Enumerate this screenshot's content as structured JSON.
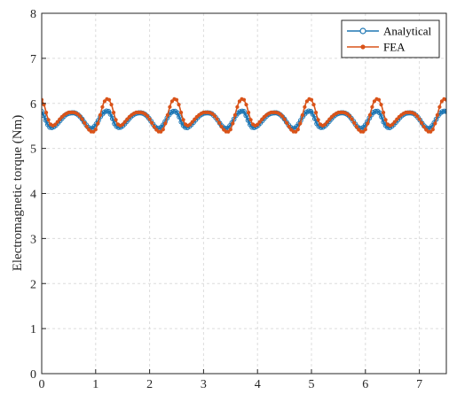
{
  "chart_data": {
    "type": "line",
    "title": "",
    "xlabel": "",
    "ylabel": "Electromagnetic torque (Nm)",
    "xlim": [
      0,
      7.5
    ],
    "ylim": [
      0,
      8
    ],
    "xticks": [
      "0",
      "1",
      "2",
      "3",
      "4",
      "5",
      "6",
      "7"
    ],
    "yticks": [
      "0",
      "1",
      "2",
      "3",
      "4",
      "5",
      "6",
      "7",
      "8"
    ],
    "grid": true,
    "legend_position": "top-right",
    "period": 1.25,
    "series": [
      {
        "name": "Analytical",
        "color": "#1f77b4",
        "marker": "open-circle",
        "period_profile": {
          "x": [
            0,
            0.05,
            0.1,
            0.15,
            0.2,
            0.25,
            0.3,
            0.35,
            0.4,
            0.45,
            0.5,
            0.55,
            0.6,
            0.65,
            0.7,
            0.75,
            0.8,
            0.85,
            0.9,
            0.95,
            1.0,
            1.05,
            1.1,
            1.15,
            1.2,
            1.25
          ],
          "y": [
            5.82,
            5.7,
            5.55,
            5.47,
            5.46,
            5.5,
            5.56,
            5.63,
            5.7,
            5.75,
            5.78,
            5.79,
            5.79,
            5.77,
            5.72,
            5.65,
            5.56,
            5.48,
            5.44,
            5.45,
            5.52,
            5.62,
            5.73,
            5.8,
            5.83,
            5.82
          ]
        }
      },
      {
        "name": "FEA",
        "color": "#d95319",
        "marker": "dot",
        "period_profile": {
          "x": [
            0,
            0.05,
            0.1,
            0.15,
            0.2,
            0.25,
            0.3,
            0.35,
            0.4,
            0.45,
            0.5,
            0.55,
            0.6,
            0.65,
            0.7,
            0.75,
            0.8,
            0.85,
            0.9,
            0.95,
            1.0,
            1.05,
            1.1,
            1.15,
            1.2,
            1.25
          ],
          "y": [
            6.08,
            5.95,
            5.72,
            5.55,
            5.5,
            5.53,
            5.6,
            5.67,
            5.73,
            5.77,
            5.8,
            5.8,
            5.8,
            5.78,
            5.73,
            5.65,
            5.55,
            5.45,
            5.38,
            5.36,
            5.42,
            5.58,
            5.82,
            6.02,
            6.1,
            6.08
          ]
        }
      }
    ]
  }
}
